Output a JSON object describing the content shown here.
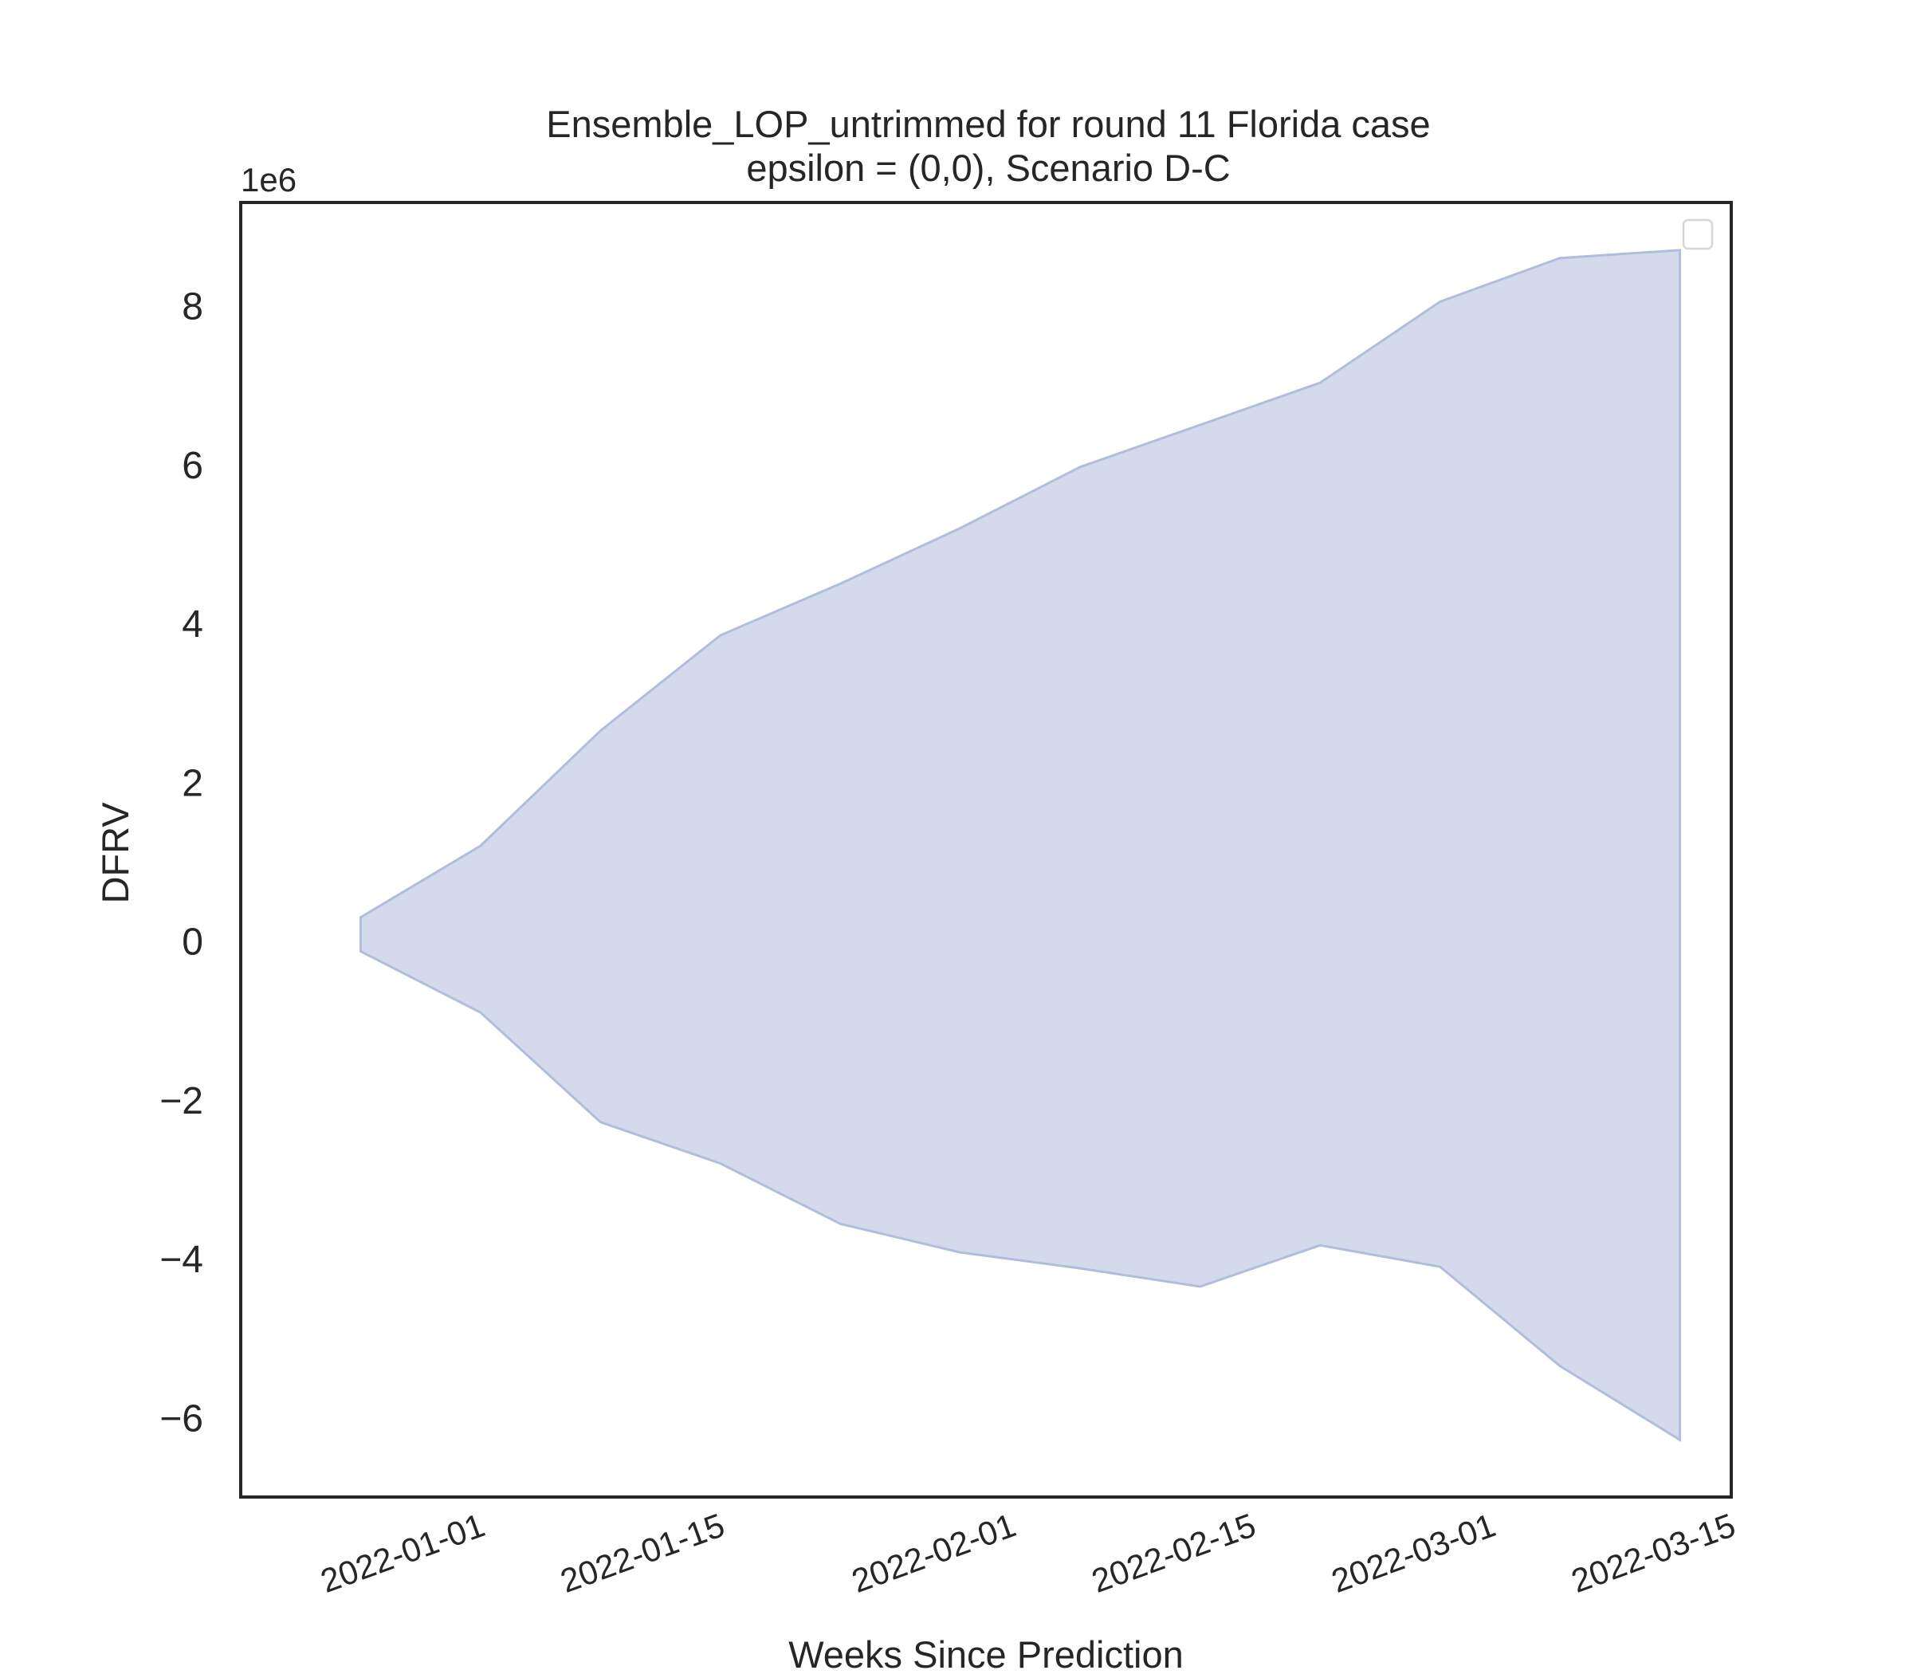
{
  "chart_data": {
    "type": "area",
    "title": "Ensemble_LOP_untrimmed for round 11 Florida case",
    "subtitle": "epsilon = (0,0), Scenario D-C",
    "xlabel": "Weeks Since Prediction",
    "ylabel": "DFRV",
    "y_offset_label": "1e6",
    "y_multiplier": 1000000,
    "xlim": [
      "2021-12-18",
      "2022-03-15"
    ],
    "ylim": [
      -7.0,
      9.3
    ],
    "x_ticks": [
      "2022-01-01",
      "2022-01-15",
      "2022-02-01",
      "2022-02-15",
      "2022-03-01",
      "2022-03-15"
    ],
    "y_ticks": [
      -6,
      -4,
      -2,
      0,
      2,
      4,
      6,
      8
    ],
    "y_tick_labels": [
      "−6",
      "−4",
      "−2",
      "0",
      "2",
      "4",
      "6",
      "8"
    ],
    "grid": false,
    "legend": "top-right (empty)",
    "fill_color": "#c3cde4",
    "edge_color": "#b0bedb",
    "band": {
      "x": [
        "2021-12-25",
        "2022-01-01",
        "2022-01-08",
        "2022-01-15",
        "2022-01-22",
        "2022-01-29",
        "2022-02-05",
        "2022-02-12",
        "2022-02-19",
        "2022-02-26",
        "2022-03-05",
        "2022-03-12"
      ],
      "upper": [
        0.3,
        1.2,
        2.65,
        3.85,
        4.5,
        5.2,
        5.97,
        6.5,
        7.03,
        8.05,
        8.6,
        8.7
      ],
      "lower": [
        -0.13,
        -0.9,
        -2.28,
        -2.8,
        -3.56,
        -3.92,
        -4.12,
        -4.35,
        -3.83,
        -4.1,
        -5.35,
        -6.28
      ]
    }
  }
}
